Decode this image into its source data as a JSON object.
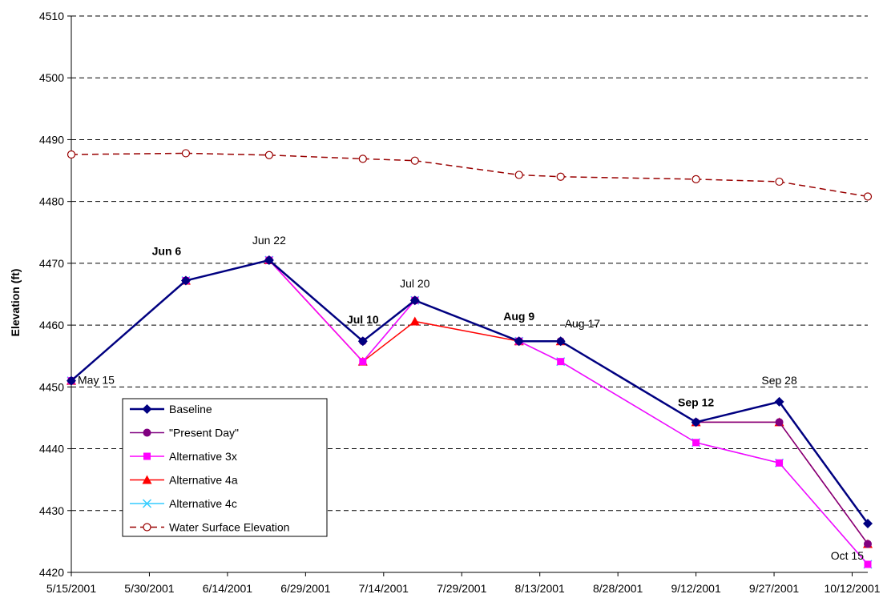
{
  "chart_data": {
    "type": "line",
    "title": "",
    "ylabel": "Elevation (ft)",
    "xlabel": "",
    "ylim": [
      4420,
      4510
    ],
    "xlim": [
      "5/15/2001",
      "10/15/2001"
    ],
    "y_ticks": [
      "4420",
      "4430",
      "4440",
      "4450",
      "4460",
      "4470",
      "4480",
      "4490",
      "4500",
      "4510"
    ],
    "x_ticks": [
      "5/15/2001",
      "5/30/2001",
      "6/14/2001",
      "6/29/2001",
      "7/14/2001",
      "7/29/2001",
      "8/13/2001",
      "8/28/2001",
      "9/12/2001",
      "9/27/2001",
      "10/12/2001"
    ],
    "grid": "horizontal-dashed",
    "legend_position": "bottom-left",
    "series": [
      {
        "name": "Baseline",
        "color": "#000080",
        "marker": "diamond",
        "points": [
          [
            "5/15/2001",
            4451
          ],
          [
            "6/6/2001",
            4467.2
          ],
          [
            "6/22/2001",
            4470.5
          ],
          [
            "7/10/2001",
            4457.4
          ],
          [
            "7/20/2001",
            4464
          ],
          [
            "8/9/2001",
            4457.4
          ],
          [
            "8/17/2001",
            4457.4
          ],
          [
            "9/12/2001",
            4444.3
          ],
          [
            "9/28/2001",
            4447.6
          ],
          [
            "10/15/2001",
            4427.9
          ]
        ]
      },
      {
        "name": "\"Present Day\"",
        "color": "#800080",
        "marker": "circle",
        "points": [
          [
            "5/15/2001",
            4451
          ],
          [
            "6/6/2001",
            4467.2
          ],
          [
            "6/22/2001",
            4470.5
          ],
          [
            "7/10/2001",
            4457.4
          ],
          [
            "7/20/2001",
            4464
          ],
          [
            "8/9/2001",
            4457.4
          ],
          [
            "8/17/2001",
            4457.4
          ],
          [
            "9/12/2001",
            4444.3
          ],
          [
            "9/28/2001",
            4444.3
          ],
          [
            "10/15/2001",
            4424.6
          ]
        ]
      },
      {
        "name": "Alternative 3x",
        "color": "#ff00ff",
        "marker": "square",
        "points": [
          [
            "5/15/2001",
            4451
          ],
          [
            "6/6/2001",
            4467.2
          ],
          [
            "6/22/2001",
            4470.5
          ],
          [
            "7/10/2001",
            4454.1
          ],
          [
            "7/20/2001",
            4464
          ],
          [
            "8/9/2001",
            4457.4
          ],
          [
            "8/17/2001",
            4454.1
          ],
          [
            "9/12/2001",
            4441
          ],
          [
            "9/28/2001",
            4437.7
          ],
          [
            "10/15/2001",
            4421.3
          ]
        ]
      },
      {
        "name": "Alternative 4a",
        "color": "#ff0000",
        "marker": "triangle",
        "points": [
          [
            "5/15/2001",
            4451
          ],
          [
            "6/6/2001",
            4467.2
          ],
          [
            "6/22/2001",
            4470.5
          ],
          [
            "7/10/2001",
            4454.1
          ],
          [
            "7/20/2001",
            4460.6
          ],
          [
            "8/9/2001",
            4457.4
          ],
          [
            "8/17/2001",
            4457.4
          ],
          [
            "9/12/2001",
            4444.3
          ],
          [
            "9/28/2001",
            4444.3
          ],
          [
            "10/15/2001",
            4424.6
          ]
        ]
      },
      {
        "name": "Alternative 4c",
        "color": "#33ccff",
        "marker": "x",
        "points": [
          [
            "5/15/2001",
            4451
          ],
          [
            "6/6/2001",
            4467.2
          ],
          [
            "6/22/2001",
            4470.5
          ],
          [
            "7/10/2001",
            4454.1
          ],
          [
            "7/20/2001",
            4464
          ],
          [
            "8/9/2001",
            4457.4
          ],
          [
            "8/17/2001",
            4454.1
          ],
          [
            "9/12/2001",
            4441
          ],
          [
            "9/28/2001",
            4437.7
          ],
          [
            "10/15/2001",
            4421.3
          ]
        ]
      },
      {
        "name": "Water Surface Elevation",
        "color": "#990000",
        "marker": "open-circle",
        "dashed": true,
        "points": [
          [
            "5/15/2001",
            4487.6
          ],
          [
            "6/6/2001",
            4487.8
          ],
          [
            "6/22/2001",
            4487.5
          ],
          [
            "7/10/2001",
            4486.9
          ],
          [
            "7/20/2001",
            4486.6
          ],
          [
            "8/9/2001",
            4484.3
          ],
          [
            "8/17/2001",
            4484
          ],
          [
            "9/12/2001",
            4483.6
          ],
          [
            "9/28/2001",
            4483.2
          ],
          [
            "10/15/2001",
            4480.8
          ]
        ]
      }
    ],
    "annotations": [
      {
        "text": "May 15",
        "date": "5/15/2001",
        "y": 4451,
        "bold": false
      },
      {
        "text": "Jun 6",
        "date": "6/6/2001",
        "y": 4467.2,
        "bold": true
      },
      {
        "text": "Jun 22",
        "date": "6/22/2001",
        "y": 4470.5,
        "bold": false
      },
      {
        "text": "Jul 10",
        "date": "7/10/2001",
        "y": 4457.4,
        "bold": true
      },
      {
        "text": "Jul 20",
        "date": "7/20/2001",
        "y": 4464,
        "bold": false
      },
      {
        "text": "Aug 9",
        "date": "8/9/2001",
        "y": 4457.4,
        "bold": true
      },
      {
        "text": "Aug 17",
        "date": "8/17/2001",
        "y": 4457.4,
        "bold": false
      },
      {
        "text": "Sep 12",
        "date": "9/12/2001",
        "y": 4444.3,
        "bold": true
      },
      {
        "text": "Sep 28",
        "date": "9/28/2001",
        "y": 4447.6,
        "bold": false
      },
      {
        "text": "Oct 15",
        "date": "10/15/2001",
        "y": 4421.3,
        "bold": false
      }
    ]
  }
}
